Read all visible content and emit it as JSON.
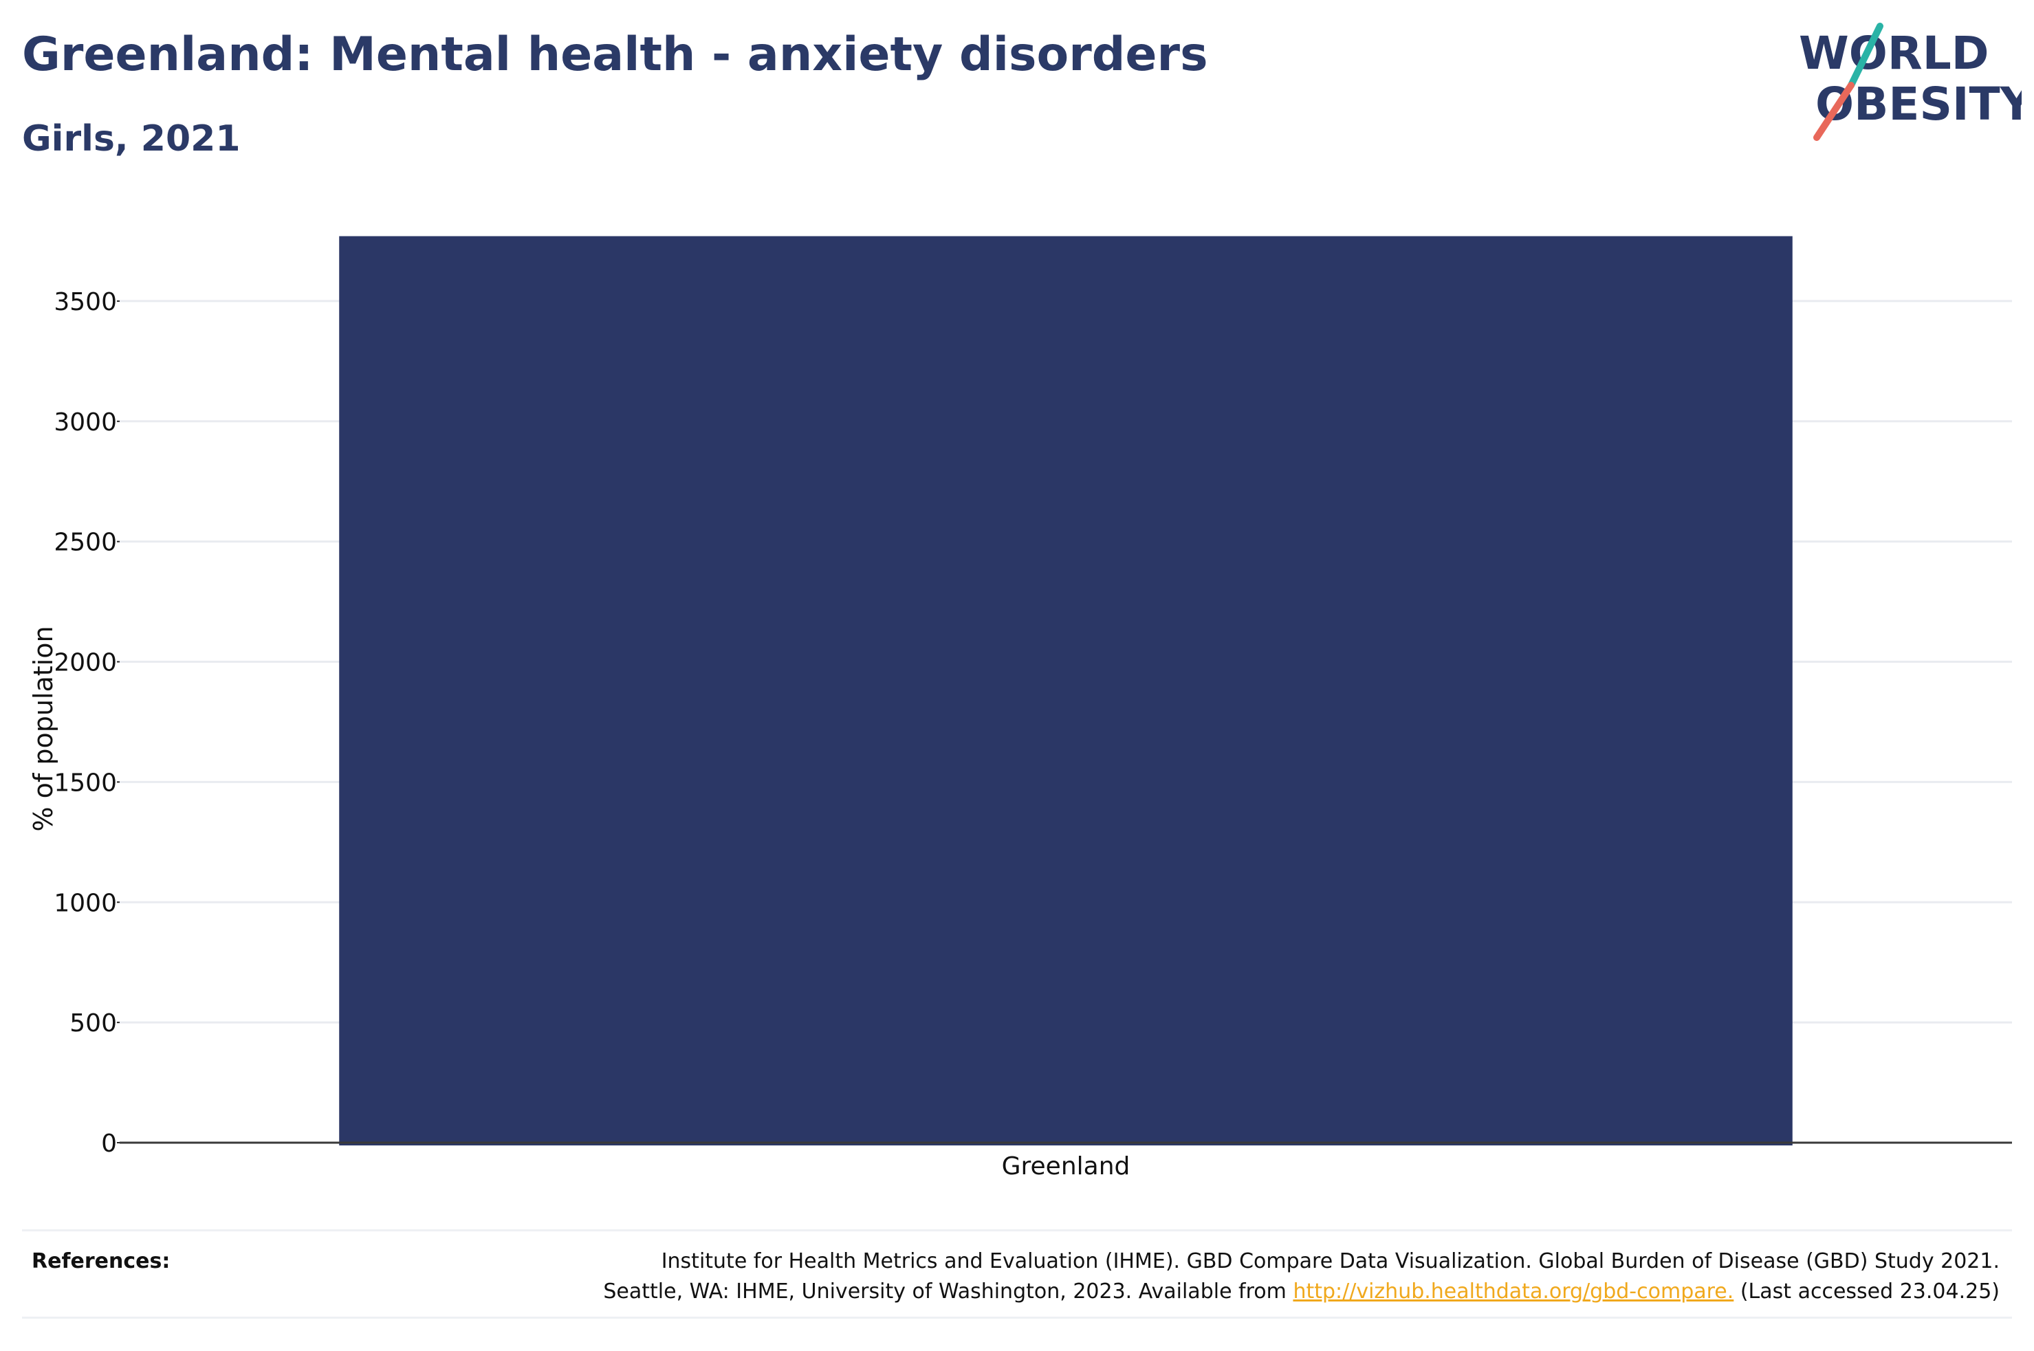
{
  "header": {
    "title": "Greenland: Mental health - anxiety disorders",
    "subtitle": "Girls, 2021"
  },
  "logo": {
    "line1": "WORLD",
    "line2": "OBESITY",
    "colors": {
      "text": "#2b3a67",
      "slash_top": "#2ab3a6",
      "slash_bottom": "#e8685a"
    }
  },
  "chart_data": {
    "type": "bar",
    "categories": [
      "Greenland"
    ],
    "values": [
      3770
    ],
    "title": "Greenland: Mental health - anxiety disorders",
    "subtitle": "Girls, 2021",
    "xlabel": "",
    "ylabel": "% of population",
    "ylim": [
      0,
      3780
    ],
    "yticks": [
      0,
      500,
      1000,
      1500,
      2000,
      2500,
      3000,
      3500
    ],
    "grid": true,
    "legend": "none",
    "bar_color": "#2b3766"
  },
  "references": {
    "label": "References:",
    "line1": "Institute for Health Metrics and Evaluation (IHME). GBD Compare Data Visualization. Global Burden of Disease (GBD) Study 2021.",
    "line2_prefix": "Seattle, WA: IHME, University of Washington, 2023. Available from",
    "link": "http://vizhub.healthdata.org/gbd-compare.",
    "line2_suffix": "(Last accessed 23.04.25)"
  }
}
